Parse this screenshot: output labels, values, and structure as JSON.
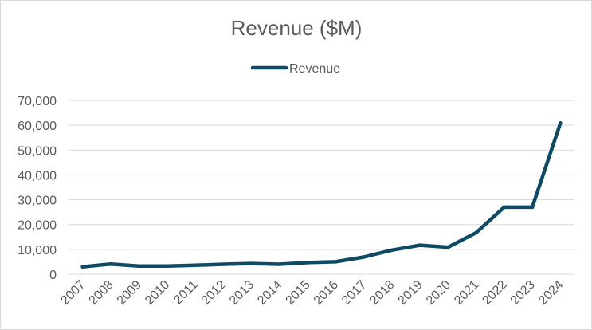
{
  "chart_data": {
    "type": "line",
    "title": "Revenue ($M)",
    "xlabel": "",
    "ylabel": "",
    "legend_position": "top",
    "grid": true,
    "categories": [
      "2007",
      "2008",
      "2009",
      "2010",
      "2011",
      "2012",
      "2013",
      "2014",
      "2015",
      "2016",
      "2017",
      "2018",
      "2019",
      "2020",
      "2021",
      "2022",
      "2023",
      "2024"
    ],
    "series": [
      {
        "name": "Revenue",
        "color": "#0e4a63",
        "values": [
          3000,
          4100,
          3300,
          3300,
          3600,
          4000,
          4300,
          4000,
          4700,
          5000,
          6900,
          9700,
          11700,
          10900,
          16700,
          27000,
          27000,
          60900
        ]
      }
    ],
    "ylim": [
      0,
      70000
    ],
    "yticks": [
      0,
      10000,
      20000,
      30000,
      40000,
      50000,
      60000,
      70000
    ],
    "ytick_labels": [
      "0",
      "10,000",
      "20,000",
      "30,000",
      "40,000",
      "50,000",
      "60,000",
      "70,000"
    ]
  }
}
